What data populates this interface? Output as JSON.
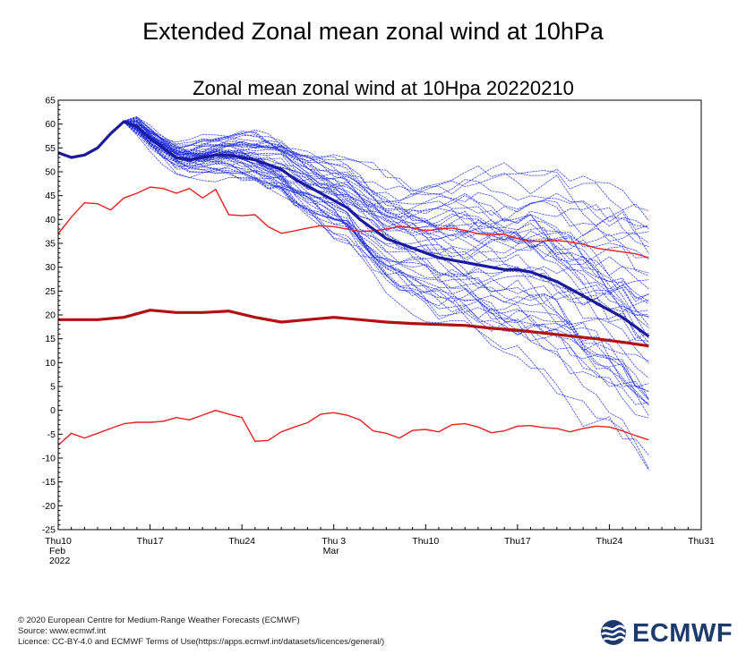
{
  "page": {
    "title": "Extended Zonal mean zonal wind at 10hPa"
  },
  "footer": {
    "copyright": "© 2020 European Centre for Medium-Range Weather Forecasts (ECMWF)",
    "source": "Source: www.ecmwf.int",
    "licence": "Licence: CC-BY-4.0 and ECMWF Terms of Use(https://apps.ecmwf.int/datasets/licences/general/)"
  },
  "logo": {
    "text": "ECMWF",
    "icon": "ecmwf-logo-icon",
    "color": "#1d3a6e"
  },
  "colors": {
    "ensemble": "#1f2de0",
    "ensemble_mean": "#1a1a9a",
    "climate": "#e82020",
    "climate_mean": "#b01010"
  },
  "chart_data": {
    "type": "line",
    "title": "Zonal mean zonal wind at 10Hpa 20220210",
    "ylim": [
      -25,
      65
    ],
    "yticks": [
      -25,
      -20,
      -15,
      -10,
      -5,
      0,
      5,
      10,
      15,
      20,
      25,
      30,
      35,
      40,
      45,
      50,
      55,
      60,
      65
    ],
    "xlim": [
      0,
      49
    ],
    "xticks": [
      {
        "x": 0,
        "label": "Thu10",
        "sub": [
          "Feb",
          "2022"
        ]
      },
      {
        "x": 7,
        "label": "Thu17",
        "sub": []
      },
      {
        "x": 14,
        "label": "Thu24",
        "sub": []
      },
      {
        "x": 21,
        "label": "Thu 3",
        "sub": [
          "Mar"
        ]
      },
      {
        "x": 28,
        "label": "Thu10",
        "sub": []
      },
      {
        "x": 35,
        "label": "Thu17",
        "sub": []
      },
      {
        "x": 42,
        "label": "Thu24",
        "sub": []
      },
      {
        "x": 49,
        "label": "Thu31",
        "sub": []
      }
    ],
    "grid": false,
    "series": [
      {
        "role": "climatology-mean",
        "x": [
          0,
          3,
          5,
          7,
          9,
          11,
          13,
          15,
          17,
          19,
          21,
          23,
          25,
          27,
          29,
          31,
          33,
          35,
          37,
          39,
          41,
          43,
          45
        ],
        "values": [
          19,
          19,
          19.5,
          21,
          20.5,
          20.5,
          20.8,
          19.5,
          18.5,
          19,
          19.5,
          19,
          18.5,
          18.2,
          18,
          17.8,
          17.2,
          16.8,
          16.2,
          15.6,
          15,
          14.3,
          13.5
        ]
      },
      {
        "role": "climatology-upper",
        "x": [
          0,
          1,
          2,
          3,
          4,
          5,
          6,
          7,
          8,
          9,
          10,
          11,
          12,
          13,
          14,
          15,
          16,
          17,
          18,
          19,
          20,
          21,
          22,
          23,
          24,
          25,
          26,
          27,
          28,
          29,
          30,
          31,
          32,
          33,
          34,
          35,
          36,
          37,
          38,
          39,
          40,
          41,
          42,
          43,
          44,
          45
        ],
        "values": [
          37,
          40.5,
          43.5,
          43.3,
          42,
          44.5,
          45.5,
          46.8,
          46.5,
          45.5,
          46.5,
          44.5,
          46.3,
          41,
          40.8,
          41,
          38.5,
          37.1,
          37.6,
          38.2,
          38.7,
          38.5,
          38,
          37.5,
          37.6,
          38,
          38.5,
          38.3,
          37.6,
          38,
          38.2,
          37.7,
          37,
          36.8,
          36.9,
          36,
          35.4,
          35.5,
          35.6,
          35.3,
          34.8,
          34,
          33.6,
          33.2,
          32.8,
          32
        ]
      },
      {
        "role": "climatology-lower",
        "x": [
          0,
          1,
          2,
          3,
          4,
          5,
          6,
          7,
          8,
          9,
          10,
          11,
          12,
          13,
          14,
          15,
          16,
          17,
          18,
          19,
          20,
          21,
          22,
          23,
          24,
          25,
          26,
          27,
          28,
          29,
          30,
          31,
          32,
          33,
          34,
          35,
          36,
          37,
          38,
          39,
          40,
          41,
          42,
          43,
          44,
          45
        ],
        "values": [
          -7.3,
          -4.8,
          -5.8,
          -4.8,
          -3.8,
          -2.8,
          -2.5,
          -2.5,
          -2.3,
          -1.5,
          -2,
          -1,
          0,
          -0.8,
          -1.5,
          -6.5,
          -6.3,
          -4.5,
          -3.5,
          -2.6,
          -0.8,
          -0.5,
          -1,
          -2,
          -4.3,
          -4.8,
          -5.8,
          -4.2,
          -4,
          -4.5,
          -3,
          -2.8,
          -3.5,
          -4.7,
          -4.3,
          -3.3,
          -3.2,
          -3.6,
          -3.8,
          -4.5,
          -3.8,
          -3.3,
          -3.5,
          -4.3,
          -5.3,
          -6.2
        ]
      },
      {
        "role": "ensemble-mean",
        "x": [
          0,
          1,
          2,
          3,
          4,
          5,
          6,
          7,
          8,
          9,
          10,
          11,
          12,
          13,
          14,
          15,
          16,
          17,
          18,
          19,
          20,
          21,
          22,
          23,
          24,
          25,
          26,
          27,
          28,
          29,
          30,
          31,
          32,
          33,
          34,
          35,
          36,
          37,
          38,
          39,
          40,
          41,
          42,
          43,
          44,
          45
        ],
        "values": [
          54,
          53,
          53.5,
          55,
          58,
          60.5,
          59.5,
          57,
          55,
          53,
          52.5,
          53,
          53.5,
          53.5,
          53,
          52.5,
          51.5,
          50.5,
          48.5,
          47,
          45.5,
          44,
          42.5,
          40,
          38,
          36,
          35,
          34,
          33,
          32,
          31.5,
          31,
          30.5,
          30,
          29.5,
          29.5,
          29,
          28,
          27,
          25.5,
          24,
          22.5,
          21,
          19.5,
          17.5,
          15.5
        ]
      }
    ]
  }
}
